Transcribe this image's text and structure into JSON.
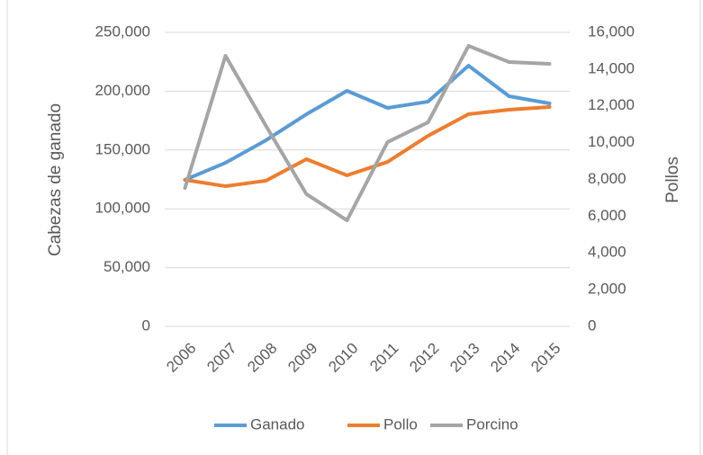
{
  "chart_data": {
    "type": "line",
    "categories": [
      "2006",
      "2007",
      "2008",
      "2009",
      "2010",
      "2011",
      "2012",
      "2013",
      "2014",
      "2015"
    ],
    "series": [
      {
        "name": "Ganado",
        "color": "#5b9bd5",
        "values": [
          124600,
          139100,
          158300,
          180400,
          200300,
          185800,
          191100,
          221700,
          195700,
          189600
        ]
      },
      {
        "name": "Pollo",
        "color": "#ed7d31",
        "axis": "y2",
        "values": [
          7975,
          7630,
          7930,
          9100,
          8220,
          8950,
          10370,
          11550,
          11790,
          11940
        ]
      },
      {
        "name": "Porcino",
        "color": "#a5a5a5",
        "values": [
          117700,
          230100,
          170500,
          112400,
          90200,
          156700,
          173500,
          238500,
          224800,
          223200
        ]
      }
    ],
    "ylabel": "Cabezas de ganado",
    "y2label": "Pollos",
    "ylim": [
      0,
      250000
    ],
    "yticks": [
      0,
      {
        "value": 50000,
        "label": "50,000"
      },
      {
        "value": 100000,
        "label": "100,000"
      },
      {
        "value": 150000,
        "label": "150,000"
      },
      {
        "value": 200000,
        "label": "200,000"
      },
      {
        "value": 250000,
        "label": "250,000"
      }
    ],
    "y2lim": [
      0,
      16000
    ],
    "y2ticks": [
      0,
      {
        "value": 2000,
        "label": "2,000"
      },
      {
        "value": 4000,
        "label": "4,000"
      },
      {
        "value": 6000,
        "label": "6,000"
      },
      {
        "value": 8000,
        "label": "8,000"
      },
      {
        "value": 10000,
        "label": "10,000"
      },
      {
        "value": 12000,
        "label": "12,000"
      },
      {
        "value": 14000,
        "label": "14,000"
      },
      {
        "value": 16000,
        "label": "16,000"
      }
    ],
    "grid": true,
    "legend": "bottom"
  }
}
